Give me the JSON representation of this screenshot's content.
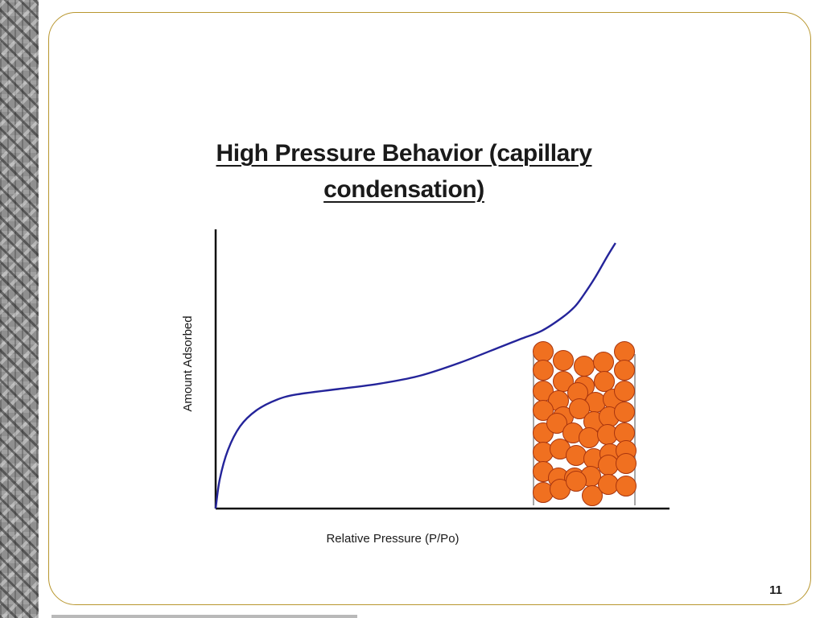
{
  "slide": {
    "title": "High Pressure Behavior (capillary condensation)",
    "page_number": "11"
  },
  "chart_data": {
    "type": "line",
    "title": "High Pressure Behavior (capillary condensation)",
    "xlabel": "Relative Pressure (P/Po)",
    "ylabel": "Amount Adsorbed",
    "xlim": [
      0,
      1
    ],
    "ylim": [
      0,
      1
    ],
    "grid": false,
    "ticks": false,
    "series": [
      {
        "x": [
          0,
          0.01,
          0.03,
          0.06,
          0.1,
          0.15,
          0.2,
          0.3,
          0.4,
          0.5,
          0.6,
          0.7,
          0.75,
          0.8,
          0.85,
          0.88,
          0.9,
          0.93,
          0.96,
          0.98
        ],
        "y": [
          0,
          0.11,
          0.22,
          0.31,
          0.37,
          0.41,
          0.43,
          0.45,
          0.47,
          0.5,
          0.55,
          0.61,
          0.64,
          0.67,
          0.72,
          0.76,
          0.8,
          0.87,
          0.95,
          1.0
        ],
        "color": "#24249a"
      }
    ],
    "annotation": {
      "label": "pore-filling-illustration",
      "fill": "#f07020",
      "stroke": "#a8350e",
      "wall_color": "#8a8a8a"
    }
  },
  "theme": {
    "frame_color": "#b8962e",
    "axis_color": "#111111",
    "line_color": "#24249a",
    "particle_color": "#f07020"
  }
}
